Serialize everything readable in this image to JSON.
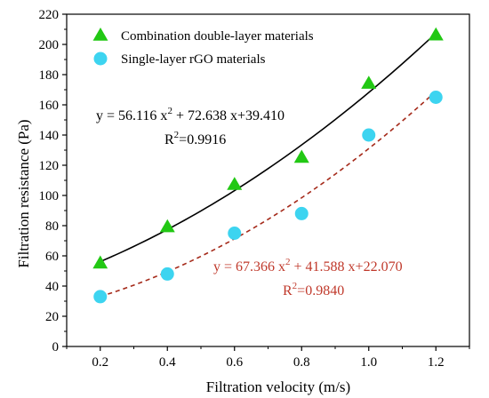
{
  "chart_data": {
    "type": "scatter",
    "xlabel": "Filtration velocity (m/s)",
    "ylabel": "Filtration resistance (Pa)",
    "xlim": [
      0.1,
      1.3
    ],
    "ylim": [
      0,
      220
    ],
    "xticks": [
      0.2,
      0.4,
      0.6,
      0.8,
      1.0,
      1.2
    ],
    "xtick_labels": [
      "0.2",
      "0.4",
      "0.6",
      "0.8",
      "1.0",
      "1.2"
    ],
    "yticks": [
      0,
      20,
      40,
      60,
      80,
      100,
      120,
      140,
      160,
      180,
      200,
      220
    ],
    "ytick_labels": [
      "0",
      "20",
      "40",
      "60",
      "80",
      "100",
      "120",
      "140",
      "160",
      "180",
      "200",
      "220"
    ],
    "grid": false,
    "legend_position": "top-left",
    "series": [
      {
        "name": "Combination double-layer materials",
        "marker": "triangle",
        "color": "#22c814",
        "x": [
          0.2,
          0.4,
          0.6,
          0.8,
          1.0,
          1.2
        ],
        "y": [
          55,
          79,
          107,
          125,
          174,
          206
        ],
        "fit": {
          "coefficients": [
            56.116,
            72.638,
            39.41
          ],
          "line_color": "#000000",
          "line_style": "solid",
          "equation": "y = 56.116 x",
          "equation_power": "2",
          "equation_rest": " + 72.638 x+39.410",
          "r2_label": "R",
          "r2_power": "2",
          "r2_value": "=0.9916",
          "text_color": "#000000"
        }
      },
      {
        "name": "Single-layer rGO materials",
        "marker": "circle",
        "color": "#3dd4f0",
        "x": [
          0.2,
          0.4,
          0.6,
          0.8,
          1.0,
          1.2
        ],
        "y": [
          33,
          48,
          75,
          88,
          140,
          165
        ],
        "fit": {
          "coefficients": [
            67.366,
            41.588,
            22.07
          ],
          "line_color": "#a52a1a",
          "line_style": "dashed",
          "equation": "y = 67.366 x",
          "equation_power": "2",
          "equation_rest": " + 41.588 x+22.070",
          "r2_label": "R",
          "r2_power": "2",
          "r2_value": "=0.9840",
          "text_color": "#c0392b"
        }
      }
    ]
  }
}
